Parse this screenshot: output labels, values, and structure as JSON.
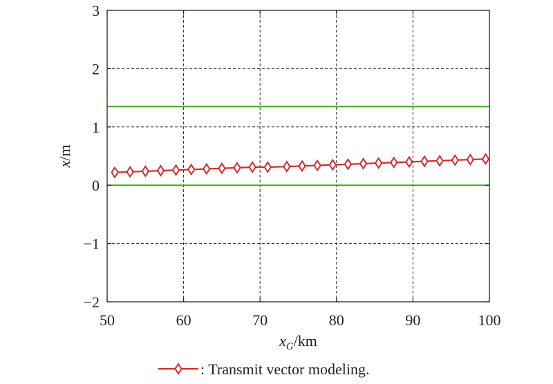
{
  "chart_data": {
    "type": "line",
    "title": "",
    "xlabel": {
      "var": "x",
      "sub": "G",
      "unit": "/km"
    },
    "ylabel": {
      "var": "x",
      "unit": "/m"
    },
    "xlim": [
      50,
      100
    ],
    "ylim": [
      -2,
      3
    ],
    "xticks": [
      50,
      60,
      70,
      80,
      90,
      100
    ],
    "yticks": [
      -2,
      -1,
      0,
      1,
      2,
      3
    ],
    "xtick_labels": [
      "50",
      "60",
      "70",
      "80",
      "90",
      "100"
    ],
    "ytick_labels": [
      "−2",
      "−1",
      "0",
      "1",
      "2",
      "3"
    ],
    "grid": true,
    "reference_lines": [
      {
        "y": 1.35,
        "color": "#3aaa1e"
      },
      {
        "y": 0.0,
        "color": "#3aaa1e"
      }
    ],
    "series": [
      {
        "name": ": Transmit vector modeling.",
        "color": "#d42a2a",
        "marker": "diamond",
        "x": [
          51,
          53,
          55,
          57,
          59,
          61,
          63,
          65,
          67,
          69,
          71,
          73.5,
          75.5,
          77.5,
          79.5,
          81.5,
          83.5,
          85.5,
          87.5,
          89.5,
          91.5,
          93.5,
          95.5,
          97.5,
          99.5
        ],
        "y": [
          0.22,
          0.23,
          0.24,
          0.25,
          0.26,
          0.27,
          0.28,
          0.29,
          0.3,
          0.31,
          0.31,
          0.32,
          0.33,
          0.34,
          0.35,
          0.36,
          0.37,
          0.38,
          0.39,
          0.4,
          0.41,
          0.42,
          0.43,
          0.44,
          0.45
        ]
      }
    ],
    "legend": {
      "position": "bottom-center"
    }
  }
}
